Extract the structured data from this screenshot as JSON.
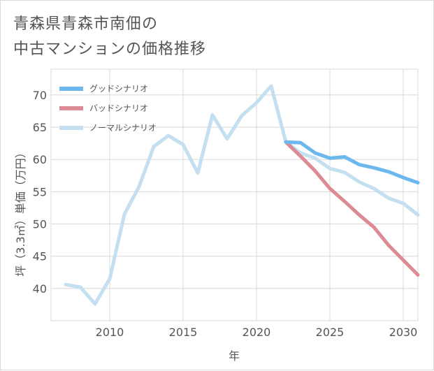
{
  "chart_data": {
    "type": "line",
    "title_lines": [
      "青森県青森市南佃の",
      "中古マンションの価格推移"
    ],
    "xlabel": "年",
    "ylabel": "坪（3.3㎡）単価（万円）",
    "xlim": [
      2006,
      2031
    ],
    "ylim": [
      35,
      74
    ],
    "x_ticks": [
      2010,
      2015,
      2020,
      2025,
      2030
    ],
    "y_ticks": [
      40,
      45,
      50,
      55,
      60,
      65,
      70
    ],
    "grid": true,
    "legend_position": "top-left",
    "series": [
      {
        "name": "グッドシナリオ",
        "color": "#6cb8ee",
        "x": [
          2022,
          2023,
          2024,
          2025,
          2026,
          2027,
          2028,
          2029,
          2030,
          2031
        ],
        "values": [
          62.7,
          62.6,
          61.0,
          60.2,
          60.4,
          59.2,
          58.7,
          58.1,
          57.2,
          56.4
        ]
      },
      {
        "name": "バッドシナリオ",
        "color": "#dc8a94",
        "x": [
          2022,
          2023,
          2024,
          2025,
          2026,
          2027,
          2028,
          2029,
          2030,
          2031
        ],
        "values": [
          62.7,
          60.5,
          58.2,
          55.5,
          53.5,
          51.4,
          49.5,
          46.7,
          44.4,
          42.1
        ]
      },
      {
        "name": "ノーマルシナリオ",
        "color": "#c3dff0",
        "x": [
          2007,
          2008,
          2009,
          2010,
          2011,
          2012,
          2013,
          2014,
          2015,
          2016,
          2017,
          2018,
          2019,
          2020,
          2021,
          2022,
          2023,
          2024,
          2025,
          2026,
          2027,
          2028,
          2029,
          2030,
          2031
        ],
        "values": [
          40.6,
          40.2,
          37.6,
          41.5,
          51.5,
          55.8,
          62.0,
          63.7,
          62.3,
          57.9,
          66.9,
          63.2,
          66.8,
          68.8,
          71.4,
          62.7,
          61.0,
          60.2,
          58.6,
          58.0,
          56.5,
          55.5,
          54.0,
          53.2,
          51.4
        ]
      }
    ]
  }
}
